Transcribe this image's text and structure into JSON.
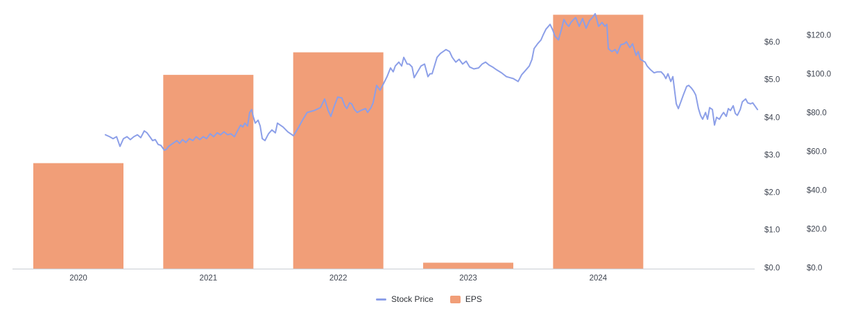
{
  "chart": {
    "background": "#ffffff",
    "colors": {
      "bar": "#F19E78",
      "line": "#8C9FE8",
      "axis_line": "#d0d4da",
      "tick_text": "#3e4450",
      "legend_text": "#2f3237"
    },
    "legend": {
      "items": [
        {
          "label": "Stock Price",
          "type": "line",
          "color": "#8C9FE8"
        },
        {
          "label": "EPS",
          "type": "bar",
          "color": "#F19E78"
        }
      ]
    }
  },
  "chart_data": {
    "type": "combo",
    "title": "",
    "grid": false,
    "legend_position": "bottom-center",
    "x_categories": [
      "2020",
      "2021",
      "2022",
      "2023",
      "2024"
    ],
    "eps_axis": {
      "tick_labels": [
        "$0.0",
        "$1.0",
        "$2.0",
        "$3.0",
        "$4.0",
        "$5.0",
        "$6.0"
      ],
      "tick_values": [
        0,
        1,
        2,
        3,
        4,
        5,
        6
      ],
      "range": [
        0,
        6.8
      ]
    },
    "price_axis": {
      "tick_labels": [
        "$0.0",
        "$20.0",
        "$40.0",
        "$60.0",
        "$80.0",
        "$100.0",
        "$120.0"
      ],
      "tick_values": [
        0,
        20,
        40,
        60,
        80,
        100,
        120
      ],
      "range": [
        0,
        132
      ]
    },
    "series": [
      {
        "name": "EPS",
        "type": "bar",
        "axis": "eps",
        "categories": [
          "2020",
          "2021",
          "2022",
          "2023",
          "2024"
        ],
        "values": [
          2.8,
          5.15,
          5.75,
          0.15,
          6.75
        ]
      },
      {
        "name": "Stock Price",
        "type": "line",
        "axis": "price",
        "points": [
          [
            2020.708,
            69
          ],
          [
            2020.74,
            68
          ],
          [
            2020.767,
            67
          ],
          [
            2020.794,
            68
          ],
          [
            2020.82,
            63
          ],
          [
            2020.847,
            67
          ],
          [
            2020.874,
            68
          ],
          [
            2020.9,
            66.5
          ],
          [
            2020.927,
            68
          ],
          [
            2020.954,
            69
          ],
          [
            2020.98,
            67.5
          ],
          [
            2021.007,
            71
          ],
          [
            2021.028,
            70
          ],
          [
            2021.05,
            68
          ],
          [
            2021.071,
            66
          ],
          [
            2021.092,
            66.5
          ],
          [
            2021.114,
            64
          ],
          [
            2021.135,
            63.5
          ],
          [
            2021.162,
            61
          ],
          [
            2021.178,
            61.5
          ],
          [
            2021.194,
            63
          ],
          [
            2021.215,
            64
          ],
          [
            2021.237,
            65
          ],
          [
            2021.258,
            66
          ],
          [
            2021.279,
            64.5
          ],
          [
            2021.301,
            66.5
          ],
          [
            2021.327,
            65
          ],
          [
            2021.354,
            67
          ],
          [
            2021.381,
            66
          ],
          [
            2021.407,
            68
          ],
          [
            2021.434,
            66.5
          ],
          [
            2021.461,
            68
          ],
          [
            2021.487,
            67
          ],
          [
            2021.514,
            69.5
          ],
          [
            2021.541,
            68
          ],
          [
            2021.568,
            70
          ],
          [
            2021.594,
            69
          ],
          [
            2021.621,
            70.5
          ],
          [
            2021.648,
            69
          ],
          [
            2021.674,
            69.5
          ],
          [
            2021.701,
            68
          ],
          [
            2021.728,
            71.5
          ],
          [
            2021.749,
            74
          ],
          [
            2021.765,
            73
          ],
          [
            2021.781,
            75
          ],
          [
            2021.802,
            73.5
          ],
          [
            2021.818,
            80.5
          ],
          [
            2021.834,
            82
          ],
          [
            2021.845,
            78.5
          ],
          [
            2021.861,
            75
          ],
          [
            2021.883,
            76.5
          ],
          [
            2021.899,
            73.5
          ],
          [
            2021.915,
            67
          ],
          [
            2021.936,
            66
          ],
          [
            2021.963,
            69.5
          ],
          [
            2021.989,
            71.5
          ],
          [
            2022.016,
            70
          ],
          [
            2022.032,
            75
          ],
          [
            2022.075,
            73
          ],
          [
            2022.112,
            70.5
          ],
          [
            2022.155,
            68.5
          ],
          [
            2022.192,
            72.5
          ],
          [
            2022.224,
            76.5
          ],
          [
            2022.261,
            80.5
          ],
          [
            2022.315,
            81.5
          ],
          [
            2022.363,
            83
          ],
          [
            2022.395,
            87.5
          ],
          [
            2022.422,
            81.5
          ],
          [
            2022.443,
            78.5
          ],
          [
            2022.47,
            84
          ],
          [
            2022.496,
            88.5
          ],
          [
            2022.528,
            88
          ],
          [
            2022.55,
            84
          ],
          [
            2022.566,
            82.5
          ],
          [
            2022.587,
            85.5
          ],
          [
            2022.603,
            85
          ],
          [
            2022.625,
            82
          ],
          [
            2022.646,
            80.5
          ],
          [
            2022.673,
            81.5
          ],
          [
            2022.71,
            82.5
          ],
          [
            2022.726,
            80.5
          ],
          [
            2022.752,
            83
          ],
          [
            2022.768,
            85.5
          ],
          [
            2022.795,
            94.5
          ],
          [
            2022.822,
            92
          ],
          [
            2022.849,
            95.5
          ],
          [
            2022.875,
            99
          ],
          [
            2022.902,
            103.5
          ],
          [
            2022.923,
            101.5
          ],
          [
            2022.939,
            104.5
          ],
          [
            2022.966,
            106.5
          ],
          [
            2022.988,
            104.5
          ],
          [
            2023.004,
            109
          ],
          [
            2023.03,
            105.5
          ],
          [
            2023.046,
            105.5
          ],
          [
            2023.068,
            104
          ],
          [
            2023.084,
            98.5
          ],
          [
            2023.11,
            101.5
          ],
          [
            2023.137,
            104.5
          ],
          [
            2023.164,
            105.5
          ],
          [
            2023.19,
            99
          ],
          [
            2023.206,
            100.5
          ],
          [
            2023.222,
            100.5
          ],
          [
            2023.26,
            109
          ],
          [
            2023.286,
            111
          ],
          [
            2023.329,
            113
          ],
          [
            2023.356,
            112
          ],
          [
            2023.377,
            109
          ],
          [
            2023.404,
            106.5
          ],
          [
            2023.43,
            108
          ],
          [
            2023.457,
            105.5
          ],
          [
            2023.484,
            107
          ],
          [
            2023.511,
            104
          ],
          [
            2023.543,
            103
          ],
          [
            2023.58,
            103.5
          ],
          [
            2023.607,
            105.5
          ],
          [
            2023.633,
            106.5
          ],
          [
            2023.66,
            105
          ],
          [
            2023.687,
            104
          ],
          [
            2023.719,
            102.5
          ],
          [
            2023.756,
            101
          ],
          [
            2023.794,
            99
          ],
          [
            2023.82,
            98.5
          ],
          [
            2023.847,
            98
          ],
          [
            2023.884,
            96.5
          ],
          [
            2023.911,
            100
          ],
          [
            2023.938,
            102
          ],
          [
            2023.97,
            104.5
          ],
          [
            2023.991,
            108
          ],
          [
            2024.007,
            113.5
          ],
          [
            2024.034,
            116
          ],
          [
            2024.06,
            118
          ],
          [
            2024.076,
            120.5
          ],
          [
            2024.098,
            123.5
          ],
          [
            2024.13,
            126
          ],
          [
            2024.151,
            123
          ],
          [
            2024.167,
            120
          ],
          [
            2024.194,
            118
          ],
          [
            2024.22,
            124
          ],
          [
            2024.236,
            128.5
          ],
          [
            2024.258,
            126
          ],
          [
            2024.274,
            125
          ],
          [
            2024.29,
            127
          ],
          [
            2024.311,
            128.5
          ],
          [
            2024.327,
            129.5
          ],
          [
            2024.354,
            125
          ],
          [
            2024.38,
            129
          ],
          [
            2024.407,
            124
          ],
          [
            2024.434,
            128
          ],
          [
            2024.455,
            129.5
          ],
          [
            2024.477,
            131.5
          ],
          [
            2024.503,
            125
          ],
          [
            2024.53,
            127
          ],
          [
            2024.551,
            125
          ],
          [
            2024.567,
            126
          ],
          [
            2024.578,
            113.5
          ],
          [
            2024.605,
            112
          ],
          [
            2024.631,
            113
          ],
          [
            2024.647,
            111
          ],
          [
            2024.674,
            115.5
          ],
          [
            2024.701,
            116
          ],
          [
            2024.717,
            117
          ],
          [
            2024.744,
            114
          ],
          [
            2024.765,
            116
          ],
          [
            2024.792,
            110
          ],
          [
            2024.808,
            112
          ],
          [
            2024.824,
            108
          ],
          [
            2024.861,
            106.5
          ],
          [
            2024.877,
            104.5
          ],
          [
            2024.904,
            102.5
          ],
          [
            2024.93,
            101
          ],
          [
            2024.957,
            101.5
          ],
          [
            2024.984,
            101.5
          ],
          [
            2025.005,
            100
          ],
          [
            2025.021,
            98
          ],
          [
            2025.037,
            100.5
          ],
          [
            2025.059,
            96.5
          ],
          [
            2025.075,
            99
          ],
          [
            2025.101,
            85
          ],
          [
            2025.117,
            82.5
          ],
          [
            2025.139,
            86.5
          ],
          [
            2025.155,
            89.5
          ],
          [
            2025.181,
            94
          ],
          [
            2025.197,
            94.5
          ],
          [
            2025.219,
            93
          ],
          [
            2025.235,
            91.5
          ],
          [
            2025.251,
            89.5
          ],
          [
            2025.272,
            82.5
          ],
          [
            2025.288,
            79
          ],
          [
            2025.304,
            77
          ],
          [
            2025.326,
            80.5
          ],
          [
            2025.342,
            77
          ],
          [
            2025.358,
            83
          ],
          [
            2025.379,
            82
          ],
          [
            2025.395,
            74
          ],
          [
            2025.411,
            78
          ],
          [
            2025.433,
            77
          ],
          [
            2025.449,
            79
          ],
          [
            2025.465,
            80.5
          ],
          [
            2025.486,
            78.5
          ],
          [
            2025.502,
            82.5
          ],
          [
            2025.518,
            81.5
          ],
          [
            2025.539,
            84
          ],
          [
            2025.555,
            80
          ],
          [
            2025.571,
            79
          ],
          [
            2025.593,
            82
          ],
          [
            2025.609,
            86
          ],
          [
            2025.635,
            87.5
          ],
          [
            2025.651,
            85.5
          ],
          [
            2025.673,
            85
          ],
          [
            2025.689,
            85.5
          ],
          [
            2025.705,
            84
          ],
          [
            2025.726,
            82
          ]
        ]
      }
    ]
  }
}
